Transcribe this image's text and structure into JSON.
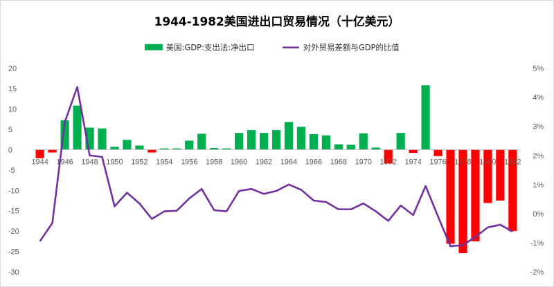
{
  "chart_data": {
    "type": "bar",
    "title": "1944-1982美国进出口贸易情况（十亿美元）",
    "x": [
      1944,
      1945,
      1946,
      1947,
      1948,
      1949,
      1950,
      1951,
      1952,
      1953,
      1954,
      1955,
      1956,
      1957,
      1958,
      1959,
      1960,
      1961,
      1962,
      1963,
      1964,
      1965,
      1966,
      1967,
      1968,
      1969,
      1970,
      1971,
      1972,
      1973,
      1974,
      1975,
      1976,
      1977,
      1978,
      1979,
      1980,
      1981,
      1982
    ],
    "x_tick_labels": [
      "1944",
      "1946",
      "1948",
      "1950",
      "1952",
      "1954",
      "1956",
      "1958",
      "1960",
      "1962",
      "1964",
      "1966",
      "1968",
      "1970",
      "1972",
      "1974",
      "1976",
      "1978",
      "1980",
      "1982"
    ],
    "series": [
      {
        "name": "美国:GDP:支出法:净出口",
        "type": "bar",
        "axis": "left",
        "positive_color": "#00b050",
        "negative_color": "#ff0000",
        "values": [
          -2.1,
          -0.7,
          7.2,
          10.8,
          5.4,
          5.2,
          0.7,
          2.4,
          1.0,
          -0.7,
          0.3,
          0.3,
          2.2,
          3.9,
          0.4,
          0.3,
          4.1,
          4.8,
          4.1,
          4.8,
          6.8,
          5.6,
          3.8,
          3.5,
          1.3,
          1.2,
          4.0,
          0.5,
          -3.4,
          4.1,
          -0.8,
          15.8,
          -1.6,
          -23.1,
          -25.4,
          -22.5,
          -13.1,
          -12.5,
          -20.0
        ]
      },
      {
        "name": "对外贸易差额与GDP的比值",
        "type": "line",
        "axis": "right",
        "color": "#7030a0",
        "values": [
          -0.95,
          -0.32,
          3.15,
          4.35,
          2.0,
          1.95,
          0.25,
          0.72,
          0.35,
          -0.18,
          0.08,
          0.1,
          0.52,
          0.85,
          0.12,
          0.08,
          0.78,
          0.85,
          0.68,
          0.78,
          1.0,
          0.82,
          0.45,
          0.4,
          0.15,
          0.15,
          0.35,
          0.08,
          -0.25,
          0.28,
          -0.05,
          0.95,
          -0.1,
          -1.12,
          -1.08,
          -0.8,
          -0.47,
          -0.38,
          -0.62
        ]
      }
    ],
    "y_left": {
      "min": -30,
      "max": 20,
      "step": 5,
      "tick_labels": [
        "20",
        "15",
        "10",
        "5",
        "0",
        "-5",
        "-10",
        "-15",
        "-20",
        "-25",
        "-30"
      ]
    },
    "y_right": {
      "min": -2,
      "max": 5,
      "step": 1,
      "unit": "%",
      "tick_labels": [
        "5%",
        "4%",
        "3%",
        "2%",
        "1%",
        "0%",
        "-1%",
        "-2%"
      ]
    },
    "legend_position": "top-center",
    "grid": false
  }
}
